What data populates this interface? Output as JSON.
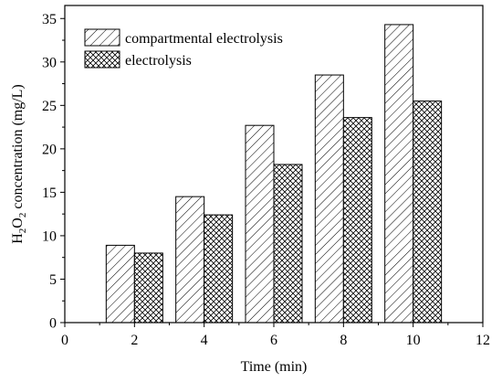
{
  "chart_data": {
    "type": "bar",
    "x": [
      2,
      4,
      6,
      8,
      10
    ],
    "series": [
      {
        "name": "compartmental electrolysis",
        "pattern": "hatch",
        "values": [
          8.9,
          14.5,
          22.7,
          28.5,
          34.3
        ]
      },
      {
        "name": "electrolysis",
        "pattern": "crosshatch",
        "values": [
          8.0,
          12.4,
          18.2,
          23.6,
          25.5
        ]
      }
    ],
    "xlabel": "Time (min)",
    "ylabel": {
      "prefix": "H",
      "sub1": "2",
      "mid": "O",
      "sub2": "2",
      "suffix": " concentration (mg/L)"
    },
    "xlim": [
      0,
      12
    ],
    "ylim": [
      0,
      36.5
    ],
    "xticks": [
      0,
      2,
      4,
      6,
      8,
      10,
      12
    ],
    "yticks": [
      0,
      5,
      10,
      15,
      20,
      25,
      30,
      35
    ],
    "grid": false,
    "legend_position": "top-left",
    "colors": {
      "edge": "#000000",
      "fill": "#ffffff"
    }
  }
}
